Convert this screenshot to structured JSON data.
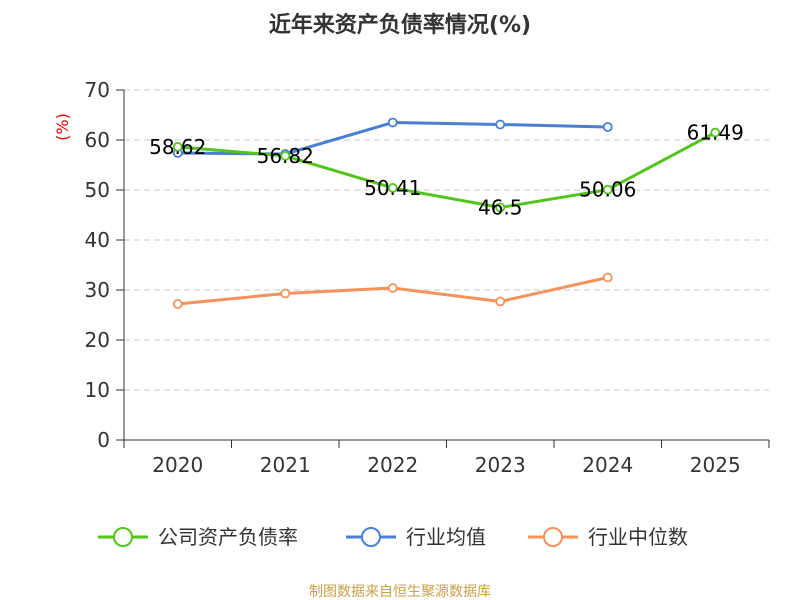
{
  "chart_data": {
    "type": "line",
    "title": "近年来资产负债率情况(%)",
    "unit": "(%)",
    "categories": [
      "2020",
      "2021",
      "2022",
      "2023",
      "2024",
      "2025"
    ],
    "yticks": [
      "0",
      "10",
      "20",
      "30",
      "40",
      "50",
      "60",
      "70"
    ],
    "ylim": [
      0,
      70
    ],
    "grid": true,
    "legend_position": "bottom",
    "series": [
      {
        "name": "公司资产负债率",
        "color": "#52c41a",
        "values": [
          58.62,
          56.82,
          50.41,
          46.5,
          50.06,
          61.49
        ],
        "labels": [
          "58.62",
          "56.82",
          "50.41",
          "46.5",
          "50.06",
          "61.49"
        ]
      },
      {
        "name": "行业均值",
        "color": "#4a7fd4",
        "values": [
          57.4,
          57.2,
          63.5,
          63.1,
          62.6,
          null
        ]
      },
      {
        "name": "行业中位数",
        "color": "#f5925b",
        "values": [
          27.2,
          29.3,
          30.4,
          27.7,
          32.5,
          null
        ]
      }
    ],
    "source": "制图数据来自恒生聚源数据库"
  }
}
